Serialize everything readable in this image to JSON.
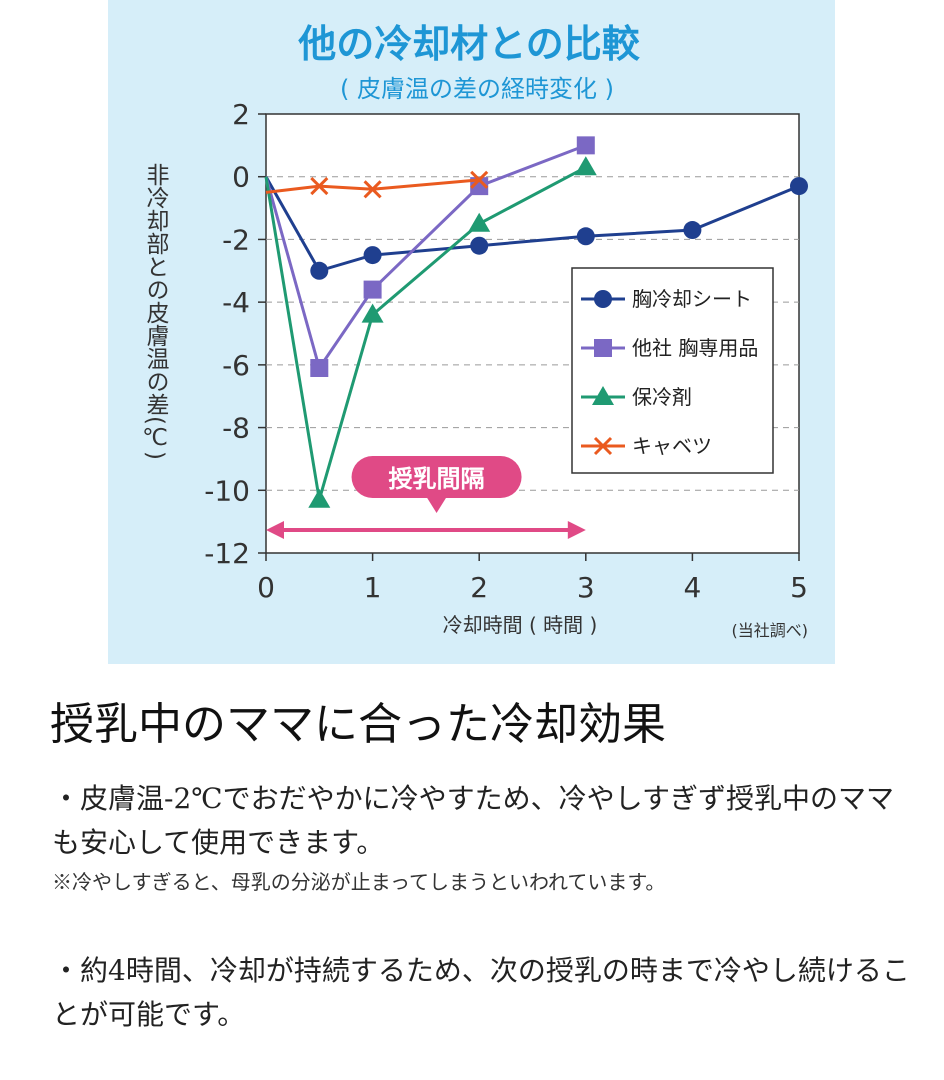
{
  "chart_data": {
    "type": "line",
    "title": "他の冷却材との比較",
    "subtitle": "( 皮膚温の差の経時変化 )",
    "xlabel": "冷却時間 ( 時間 )",
    "ylabel": "非冷却部との皮膚温の差(℃)",
    "source_note": "(当社調べ)",
    "xlim": [
      0,
      5
    ],
    "ylim": [
      -12,
      2
    ],
    "x_ticks": [
      "0",
      "1",
      "2",
      "3",
      "4",
      "5"
    ],
    "y_ticks": [
      "2",
      "0",
      "-2",
      "-4",
      "-6",
      "-8",
      "-10",
      "-12"
    ],
    "grid": "dashed horizontal",
    "legend_position": "right",
    "annotation": {
      "label": "授乳間隔",
      "x_range": [
        0,
        3
      ]
    },
    "series": [
      {
        "name": "胸冷却シート",
        "marker": "circle",
        "color": "#1f3f8f",
        "x": [
          0,
          0.5,
          1,
          2,
          3,
          4,
          5
        ],
        "y": [
          0,
          -3,
          -2.5,
          -2.2,
          -1.9,
          -1.7,
          -0.3
        ]
      },
      {
        "name": "他社 胸専用品",
        "marker": "square",
        "color": "#7b68c4",
        "x": [
          0,
          0.5,
          1,
          2,
          3
        ],
        "y": [
          0,
          -6.1,
          -3.6,
          -0.3,
          1
        ]
      },
      {
        "name": "保冷剤",
        "marker": "triangle",
        "color": "#1f9a72",
        "x": [
          0,
          0.5,
          1,
          2,
          3
        ],
        "y": [
          0,
          -10.3,
          -4.4,
          -1.5,
          0.3
        ]
      },
      {
        "name": "キャベツ",
        "marker": "cross",
        "color": "#ea5a1f",
        "x": [
          0,
          0.5,
          1,
          2
        ],
        "y": [
          -0.5,
          -0.3,
          -0.4,
          -0.1
        ]
      }
    ]
  },
  "text": {
    "heading": "授乳中のママに合った冷却効果",
    "bullet1": "・皮膚温-2℃でおだやかに冷やすため、冷やしすぎず授乳中のママも安心して使用できます。",
    "note": "※冷やしすぎると、母乳の分泌が止まってしまうといわれています。",
    "bullet2": "・約4時間、冷却が持続するため、次の授乳の時まで冷やし続けることが可能です。"
  }
}
